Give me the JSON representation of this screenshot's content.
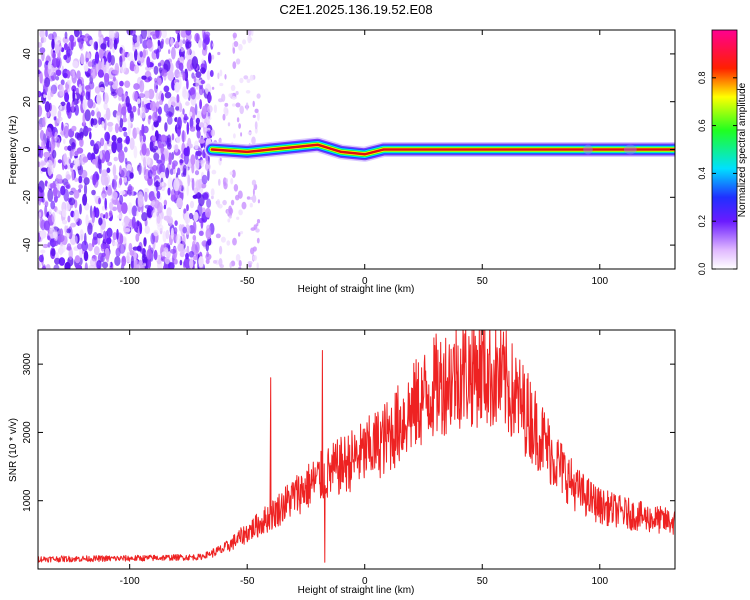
{
  "title": "C2E1.2025.136.19.52.E08",
  "colors": {
    "snr_line": "#ee2222",
    "track_core": "#e01010",
    "noise": "#6a1bff",
    "axis": "#000000"
  },
  "chart_data": [
    {
      "type": "heatmap",
      "xlabel": "Height of straight line (km)",
      "ylabel": "Frequency (Hz)",
      "xlim": [
        -139,
        132
      ],
      "ylim": [
        -50,
        50
      ],
      "xticks": [
        -100,
        -50,
        0,
        50,
        100
      ],
      "yticks": [
        -40,
        -20,
        0,
        20,
        40
      ],
      "colorbar": {
        "label": "Normalized spectral amplitude",
        "range": [
          0.0,
          1.0
        ],
        "ticks": [
          "0.0",
          "0.2",
          "0.4",
          "0.6",
          "0.8"
        ],
        "colormap": "rainbow (white-violet-blue-cyan-green-yellow-red-magenta)"
      },
      "features": {
        "noise_region_km": [
          -139,
          -65
        ],
        "sparse_noise_km": [
          -65,
          -45
        ],
        "signal_track": [
          {
            "x": -65,
            "y": 0
          },
          {
            "x": -50,
            "y": -1
          },
          {
            "x": -40,
            "y": 0
          },
          {
            "x": -30,
            "y": 1
          },
          {
            "x": -20,
            "y": 2
          },
          {
            "x": -10,
            "y": -1
          },
          {
            "x": 0,
            "y": -2
          },
          {
            "x": 8,
            "y": 0
          },
          {
            "x": 20,
            "y": 0
          },
          {
            "x": 60,
            "y": 0
          },
          {
            "x": 100,
            "y": 0
          },
          {
            "x": 132,
            "y": 0
          }
        ]
      }
    },
    {
      "type": "line",
      "xlabel": "Height of straight line (km)",
      "ylabel": "SNR (10 * v/v)",
      "xlim": [
        -139,
        132
      ],
      "ylim": [
        0,
        3500
      ],
      "xticks": [
        -100,
        -50,
        0,
        50,
        100
      ],
      "yticks": [
        1000,
        2000,
        3000
      ],
      "series": [
        {
          "envelope": [
            {
              "x": -139,
              "y": 150
            },
            {
              "x": -100,
              "y": 160
            },
            {
              "x": -70,
              "y": 180
            },
            {
              "x": -60,
              "y": 300
            },
            {
              "x": -50,
              "y": 550
            },
            {
              "x": -40,
              "y": 800
            },
            {
              "x": -30,
              "y": 1100
            },
            {
              "x": -20,
              "y": 1350
            },
            {
              "x": -10,
              "y": 1550
            },
            {
              "x": 0,
              "y": 1750
            },
            {
              "x": 10,
              "y": 2000
            },
            {
              "x": 20,
              "y": 2400
            },
            {
              "x": 30,
              "y": 2750
            },
            {
              "x": 40,
              "y": 2950
            },
            {
              "x": 50,
              "y": 3000
            },
            {
              "x": 60,
              "y": 2800
            },
            {
              "x": 70,
              "y": 2300
            },
            {
              "x": 80,
              "y": 1700
            },
            {
              "x": 90,
              "y": 1200
            },
            {
              "x": 100,
              "y": 950
            },
            {
              "x": 110,
              "y": 850
            },
            {
              "x": 120,
              "y": 770
            },
            {
              "x": 132,
              "y": 700
            }
          ],
          "spikes": [
            {
              "x": -40,
              "y": 2800
            },
            {
              "x": -18,
              "y": 3200
            },
            {
              "x": -17,
              "y": 100
            }
          ]
        }
      ]
    }
  ]
}
